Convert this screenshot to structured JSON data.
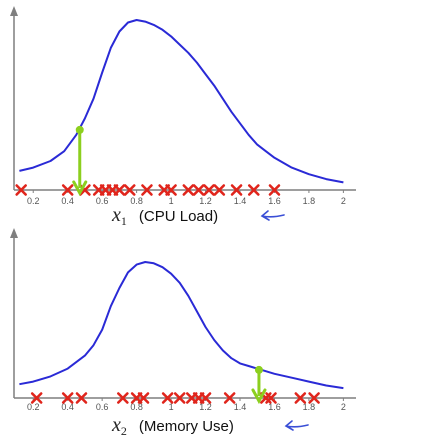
{
  "colors": {
    "curve": "#2a2ad6",
    "marker": "#e0251c",
    "highlight": "#8ccf1e",
    "axis": "#7f7f7f",
    "arrow": "#3a4fd6"
  },
  "chart_data": [
    {
      "type": "line",
      "xlabel_var": "x",
      "xlabel_sub": "1",
      "xlabel_text": "(CPU Load)",
      "xlim": [
        0.1,
        2.05
      ],
      "xticks": [
        "0.2",
        "0.4",
        "0.6",
        "0.8",
        "1",
        "1.2",
        "1.4",
        "1.6",
        "1.8",
        "2"
      ],
      "curve": {
        "x": [
          0.12,
          0.2,
          0.3,
          0.38,
          0.45,
          0.5,
          0.55,
          0.6,
          0.65,
          0.7,
          0.75,
          0.8,
          0.85,
          0.9,
          0.95,
          1.0,
          1.05,
          1.1,
          1.15,
          1.2,
          1.25,
          1.3,
          1.35,
          1.4,
          1.45,
          1.5,
          1.55,
          1.6,
          1.7,
          1.8,
          1.9,
          2.0
        ],
        "y": [
          0.08,
          0.1,
          0.14,
          0.2,
          0.3,
          0.4,
          0.52,
          0.68,
          0.83,
          0.93,
          0.985,
          1.0,
          0.99,
          0.97,
          0.94,
          0.9,
          0.85,
          0.8,
          0.74,
          0.67,
          0.6,
          0.52,
          0.44,
          0.37,
          0.3,
          0.24,
          0.2,
          0.16,
          0.1,
          0.06,
          0.03,
          0.01
        ]
      },
      "samples": [
        0.13,
        0.4,
        0.5,
        0.58,
        0.62,
        0.66,
        0.7,
        0.76,
        0.86,
        0.96,
        1.0,
        1.1,
        1.16,
        1.22,
        1.28,
        1.38,
        1.48,
        1.6
      ],
      "highlight": {
        "x": 0.47,
        "y": 0.33
      }
    },
    {
      "type": "line",
      "xlabel_var": "x",
      "xlabel_sub": "2",
      "xlabel_text": "(Memory Use)",
      "xlim": [
        0.1,
        2.05
      ],
      "xticks": [
        "0.2",
        "0.4",
        "0.6",
        "0.8",
        "1",
        "1.2",
        "1.4",
        "1.6",
        "1.8",
        "2"
      ],
      "curve": {
        "x": [
          0.12,
          0.2,
          0.3,
          0.4,
          0.5,
          0.55,
          0.6,
          0.65,
          0.7,
          0.75,
          0.8,
          0.85,
          0.9,
          0.95,
          1.0,
          1.05,
          1.1,
          1.15,
          1.2,
          1.25,
          1.3,
          1.35,
          1.4,
          1.45,
          1.5,
          1.55,
          1.6,
          1.7,
          1.8,
          1.9,
          2.0
        ],
        "y": [
          0.06,
          0.08,
          0.12,
          0.18,
          0.28,
          0.36,
          0.48,
          0.66,
          0.8,
          0.92,
          0.98,
          1.0,
          0.99,
          0.96,
          0.91,
          0.84,
          0.74,
          0.62,
          0.5,
          0.4,
          0.32,
          0.26,
          0.22,
          0.2,
          0.18,
          0.16,
          0.14,
          0.11,
          0.08,
          0.05,
          0.03
        ]
      },
      "samples": [
        0.22,
        0.4,
        0.48,
        0.72,
        0.8,
        0.84,
        0.98,
        1.05,
        1.12,
        1.16,
        1.2,
        1.34,
        1.55,
        1.58,
        1.75,
        1.83
      ],
      "highlight": {
        "x": 1.51,
        "y": 0.17
      }
    }
  ]
}
